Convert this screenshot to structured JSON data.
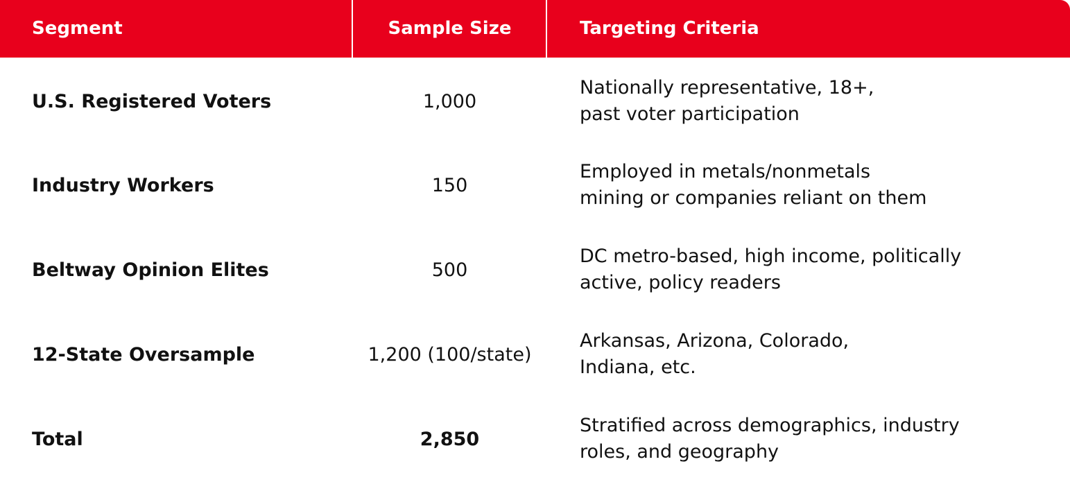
{
  "header": {
    "segment": "Segment",
    "sample_size": "Sample Size",
    "targeting_criteria": "Targeting Criteria"
  },
  "rows": [
    {
      "segment": "U.S. Registered Voters",
      "sample_size": "1,000",
      "criteria": [
        "Nationally representative, 18+,",
        "past voter participation"
      ]
    },
    {
      "segment": "Industry Workers",
      "sample_size": "150",
      "criteria": [
        "Employed in metals/nonmetals",
        "mining or companies reliant on them"
      ]
    },
    {
      "segment": "Beltway Opinion Elites",
      "sample_size": "500",
      "criteria": [
        "DC metro-based, high income, politically",
        "active, policy readers"
      ]
    },
    {
      "segment": "12-State Oversample",
      "sample_size": "1,200 (100/state)",
      "criteria": [
        "Arkansas, Arizona, Colorado,",
        "Indiana, etc."
      ]
    },
    {
      "segment": "Total",
      "sample_size": "2,850",
      "criteria": [
        "Stratified across demographics, industry",
        "roles, and geography"
      ]
    }
  ],
  "colors": {
    "header_background": "#e8001c",
    "header_text": "#ffffff",
    "body_text": "#111111"
  }
}
